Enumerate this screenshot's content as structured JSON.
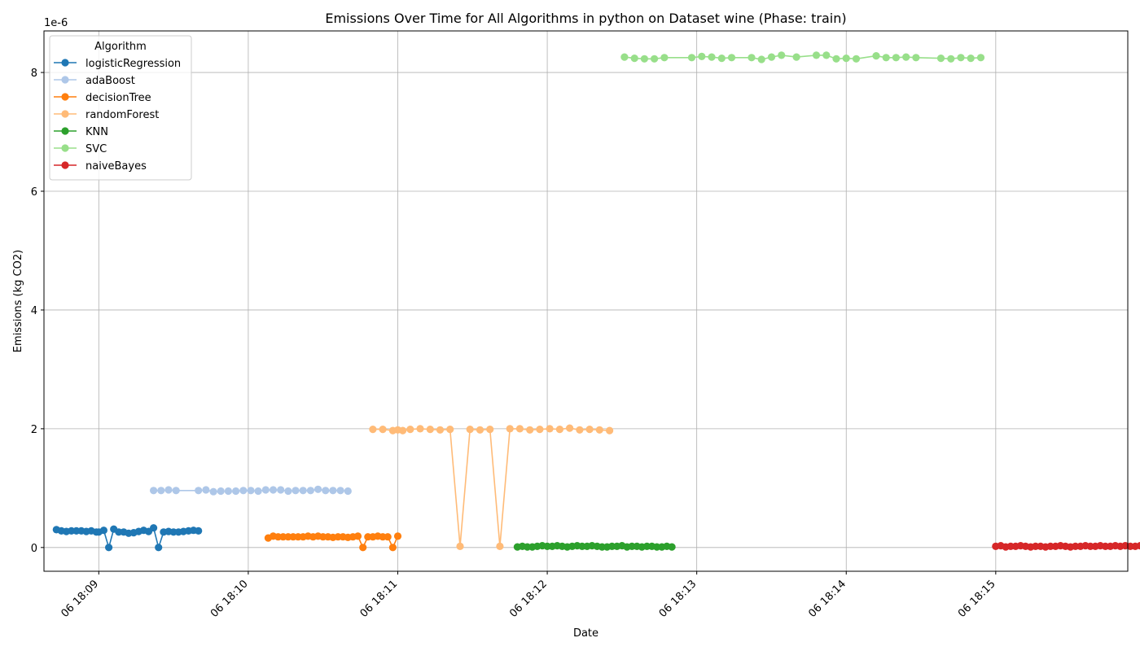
{
  "chart_data": {
    "type": "line",
    "title": "Emissions Over Time for All Algorithms in python on Dataset wine (Phase: train)",
    "xlabel": "Date",
    "ylabel": "Emissions (kg CO2)",
    "y_offset_label": "1e-6",
    "x_axis_type": "time",
    "x_range": [
      "06 18:08:38",
      "06 18:15:53"
    ],
    "ylim": [
      -0.4,
      8.7
    ],
    "y_scale": "1e-6",
    "y_ticks": [
      0,
      2,
      4,
      6,
      8
    ],
    "y_tick_labels": [
      "0",
      "2",
      "4",
      "6",
      "8"
    ],
    "x_ticks": [
      "06 18:09:00",
      "06 18:10:00",
      "06 18:11:00",
      "06 18:12:00",
      "06 18:13:00",
      "06 18:14:00",
      "06 18:15:00"
    ],
    "x_tick_labels": [
      "06 18:09",
      "06 18:10",
      "06 18:11",
      "06 18:12",
      "06 18:13",
      "06 18:14",
      "06 18:15"
    ],
    "grid": true,
    "legend": {
      "title": "Algorithm",
      "placement": "top-left"
    },
    "series": [
      {
        "name": "logisticRegression",
        "color": "#1f77b4",
        "x": [
          "06 18:08:43",
          "06 18:08:45",
          "06 18:08:47",
          "06 18:08:49",
          "06 18:08:51",
          "06 18:08:53",
          "06 18:08:55",
          "06 18:08:57",
          "06 18:08:59",
          "06 18:09:00",
          "06 18:09:02",
          "06 18:09:04",
          "06 18:09:06",
          "06 18:09:08",
          "06 18:09:10",
          "06 18:09:12",
          "06 18:09:14",
          "06 18:09:16",
          "06 18:09:18",
          "06 18:09:20",
          "06 18:09:22",
          "06 18:09:24",
          "06 18:09:26",
          "06 18:09:28",
          "06 18:09:30",
          "06 18:09:32",
          "06 18:09:34",
          "06 18:09:36",
          "06 18:09:38",
          "06 18:09:40"
        ],
        "y": [
          0.3,
          0.28,
          0.27,
          0.28,
          0.28,
          0.28,
          0.27,
          0.28,
          0.26,
          0.26,
          0.29,
          0.0,
          0.31,
          0.26,
          0.26,
          0.24,
          0.25,
          0.27,
          0.29,
          0.27,
          0.33,
          0.0,
          0.26,
          0.27,
          0.26,
          0.26,
          0.27,
          0.28,
          0.29,
          0.28
        ]
      },
      {
        "name": "adaBoost",
        "color": "#aec7e8",
        "x": [
          "06 18:09:22",
          "06 18:09:25",
          "06 18:09:28",
          "06 18:09:31",
          "06 18:09:40",
          "06 18:09:43",
          "06 18:09:46",
          "06 18:09:49",
          "06 18:09:52",
          "06 18:09:55",
          "06 18:09:58",
          "06 18:10:01",
          "06 18:10:04",
          "06 18:10:07",
          "06 18:10:10",
          "06 18:10:13",
          "06 18:10:16",
          "06 18:10:19",
          "06 18:10:22",
          "06 18:10:25",
          "06 18:10:28",
          "06 18:10:31",
          "06 18:10:34",
          "06 18:10:37",
          "06 18:10:40"
        ],
        "y": [
          0.96,
          0.96,
          0.97,
          0.96,
          0.96,
          0.97,
          0.94,
          0.95,
          0.95,
          0.95,
          0.96,
          0.96,
          0.95,
          0.97,
          0.97,
          0.97,
          0.95,
          0.96,
          0.96,
          0.96,
          0.98,
          0.96,
          0.96,
          0.96,
          0.95
        ]
      },
      {
        "name": "decisionTree",
        "color": "#ff7f0e",
        "x": [
          "06 18:10:08",
          "06 18:10:10",
          "06 18:10:12",
          "06 18:10:14",
          "06 18:10:16",
          "06 18:10:18",
          "06 18:10:20",
          "06 18:10:22",
          "06 18:10:24",
          "06 18:10:26",
          "06 18:10:28",
          "06 18:10:30",
          "06 18:10:32",
          "06 18:10:34",
          "06 18:10:36",
          "06 18:10:38",
          "06 18:10:40",
          "06 18:10:42",
          "06 18:10:44",
          "06 18:10:46",
          "06 18:10:48",
          "06 18:10:50",
          "06 18:10:52",
          "06 18:10:54",
          "06 18:10:56",
          "06 18:10:58",
          "06 18:11:00"
        ],
        "y": [
          0.16,
          0.19,
          0.18,
          0.18,
          0.18,
          0.18,
          0.18,
          0.18,
          0.19,
          0.18,
          0.19,
          0.18,
          0.18,
          0.17,
          0.18,
          0.18,
          0.17,
          0.18,
          0.19,
          0.0,
          0.18,
          0.18,
          0.19,
          0.18,
          0.18,
          0.0,
          0.19
        ]
      },
      {
        "name": "randomForest",
        "color": "#ffbb78",
        "x": [
          "06 18:10:50",
          "06 18:10:54",
          "06 18:10:58",
          "06 18:11:00",
          "06 18:11:02",
          "06 18:11:05",
          "06 18:11:09",
          "06 18:11:13",
          "06 18:11:17",
          "06 18:11:21",
          "06 18:11:25",
          "06 18:11:29",
          "06 18:11:33",
          "06 18:11:37",
          "06 18:11:41",
          "06 18:11:45",
          "06 18:11:49",
          "06 18:11:53",
          "06 18:11:57",
          "06 18:12:01",
          "06 18:12:05",
          "06 18:12:09",
          "06 18:12:13",
          "06 18:12:17",
          "06 18:12:21",
          "06 18:12:25"
        ],
        "y": [
          1.99,
          1.99,
          1.97,
          1.98,
          1.97,
          1.99,
          2.0,
          1.99,
          1.98,
          1.99,
          0.02,
          1.99,
          1.98,
          1.99,
          0.02,
          2.0,
          2.0,
          1.98,
          1.99,
          2.0,
          1.99,
          2.01,
          1.98,
          1.99,
          1.98,
          1.97
        ]
      },
      {
        "name": "KNN",
        "color": "#2ca02c",
        "x": [
          "06 18:11:48",
          "06 18:11:50",
          "06 18:11:52",
          "06 18:11:54",
          "06 18:11:56",
          "06 18:11:58",
          "06 18:12:00",
          "06 18:12:02",
          "06 18:12:04",
          "06 18:12:06",
          "06 18:12:08",
          "06 18:12:10",
          "06 18:12:12",
          "06 18:12:14",
          "06 18:12:16",
          "06 18:12:18",
          "06 18:12:20",
          "06 18:12:22",
          "06 18:12:24",
          "06 18:12:26",
          "06 18:12:28",
          "06 18:12:30",
          "06 18:12:32",
          "06 18:12:34",
          "06 18:12:36",
          "06 18:12:38",
          "06 18:12:40",
          "06 18:12:42",
          "06 18:12:44",
          "06 18:12:46",
          "06 18:12:48",
          "06 18:12:50"
        ],
        "y": [
          0.01,
          0.02,
          0.01,
          0.01,
          0.02,
          0.03,
          0.02,
          0.02,
          0.03,
          0.02,
          0.01,
          0.02,
          0.03,
          0.02,
          0.02,
          0.03,
          0.02,
          0.01,
          0.01,
          0.02,
          0.02,
          0.03,
          0.01,
          0.02,
          0.02,
          0.01,
          0.02,
          0.02,
          0.01,
          0.01,
          0.02,
          0.01
        ]
      },
      {
        "name": "SVC",
        "color": "#98df8a",
        "x": [
          "06 18:12:31",
          "06 18:12:35",
          "06 18:12:39",
          "06 18:12:43",
          "06 18:12:47",
          "06 18:12:58",
          "06 18:13:02",
          "06 18:13:06",
          "06 18:13:10",
          "06 18:13:14",
          "06 18:13:22",
          "06 18:13:26",
          "06 18:13:30",
          "06 18:13:34",
          "06 18:13:40",
          "06 18:13:48",
          "06 18:13:52",
          "06 18:13:56",
          "06 18:14:00",
          "06 18:14:04",
          "06 18:14:12",
          "06 18:14:16",
          "06 18:14:20",
          "06 18:14:24",
          "06 18:14:28",
          "06 18:14:38",
          "06 18:14:42",
          "06 18:14:46",
          "06 18:14:50",
          "06 18:14:54"
        ],
        "y": [
          8.26,
          8.24,
          8.23,
          8.23,
          8.25,
          8.25,
          8.27,
          8.26,
          8.24,
          8.25,
          8.25,
          8.22,
          8.26,
          8.29,
          8.26,
          8.29,
          8.29,
          8.23,
          8.24,
          8.23,
          8.28,
          8.25,
          8.25,
          8.26,
          8.25,
          8.24,
          8.23,
          8.25,
          8.24,
          8.25
        ]
      },
      {
        "name": "naiveBayes",
        "color": "#d62728",
        "x": [
          "06 18:15:00",
          "06 18:15:02",
          "06 18:15:04",
          "06 18:15:06",
          "06 18:15:08",
          "06 18:15:10",
          "06 18:15:12",
          "06 18:15:14",
          "06 18:15:16",
          "06 18:15:18",
          "06 18:15:20",
          "06 18:15:22",
          "06 18:15:24",
          "06 18:15:26",
          "06 18:15:28",
          "06 18:15:30",
          "06 18:15:32",
          "06 18:15:34",
          "06 18:15:36",
          "06 18:15:38",
          "06 18:15:40",
          "06 18:15:42",
          "06 18:15:44",
          "06 18:15:46",
          "06 18:15:48",
          "06 18:15:50",
          "06 18:15:52",
          "06 18:15:54",
          "06 18:15:56",
          "06 18:15:58",
          "06 18:16:00",
          "06 18:16:02"
        ],
        "y": [
          0.02,
          0.03,
          0.01,
          0.02,
          0.02,
          0.03,
          0.02,
          0.01,
          0.02,
          0.02,
          0.01,
          0.02,
          0.02,
          0.03,
          0.02,
          0.01,
          0.02,
          0.02,
          0.03,
          0.02,
          0.02,
          0.03,
          0.02,
          0.02,
          0.03,
          0.02,
          0.03,
          0.02,
          0.02,
          0.03,
          0.02,
          0.02
        ]
      }
    ]
  }
}
